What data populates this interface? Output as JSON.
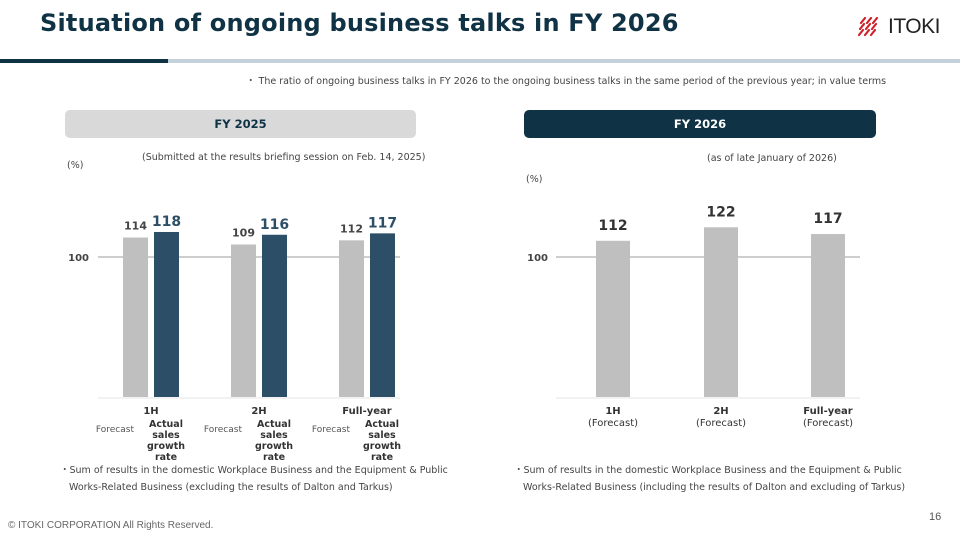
{
  "header": {
    "title": "Situation of ongoing business talks in FY 2026",
    "logo_text": "ITOKI",
    "logo_icon": "itoki-slash-mark-icon"
  },
  "note": "・ The ratio of ongoing business talks in FY 2026 to the ongoing business talks in the same period of the previous year; in value terms",
  "panels": {
    "fy2025": {
      "tab_label": "FY 2025",
      "unit": "(%)",
      "source_note": "(Submitted at the results briefing session on Feb. 14, 2025)",
      "footnote_line1": "・Sum of results in the domestic Workplace Business and the Equipment & Public",
      "footnote_line2": "Works-Related Business (excluding the results of Dalton and Tarkus)"
    },
    "fy2026": {
      "tab_label": "FY 2026",
      "unit": "(%)",
      "source_note": "(as of late January of 2026)",
      "footnote_line1": "・Sum of results in the domestic Workplace Business and the Equipment & Public",
      "footnote_line2": "Works-Related Business (including the results of Dalton and excluding of Tarkus)"
    }
  },
  "chart_data": [
    {
      "type": "bar",
      "title": "FY 2025",
      "ylabel": "(%)",
      "reference_line": 100,
      "reference_label": "100",
      "categories": [
        "1H",
        "2H",
        "Full-year"
      ],
      "series": [
        {
          "name": "Forecast",
          "color": "#bfbfbf",
          "values": [
            114,
            109,
            112
          ]
        },
        {
          "name": "Actual sales growth rate",
          "color": "#2c4f67",
          "values": [
            118,
            116,
            117
          ]
        }
      ],
      "series_sublabels": [
        "Forecast",
        "Actual\nsales\ngrowth\nrate"
      ]
    },
    {
      "type": "bar",
      "title": "FY 2026",
      "ylabel": "(%)",
      "reference_line": 100,
      "reference_label": "100",
      "categories": [
        "1H",
        "2H",
        "Full-year"
      ],
      "category_sublabels": [
        "(Forecast)",
        "(Forecast)",
        "(Forecast)"
      ],
      "series": [
        {
          "name": "Forecast",
          "color": "#bfbfbf",
          "values": [
            112,
            122,
            117
          ]
        }
      ]
    }
  ],
  "footer": {
    "copyright": "© ITOKI CORPORATION All Rights Reserved.",
    "page_number": "16"
  },
  "colors": {
    "brand_navy": "#0f3245",
    "actual_bar": "#2c4f67",
    "forecast_bar": "#bfbfbf",
    "logo_red": "#d0202a"
  }
}
